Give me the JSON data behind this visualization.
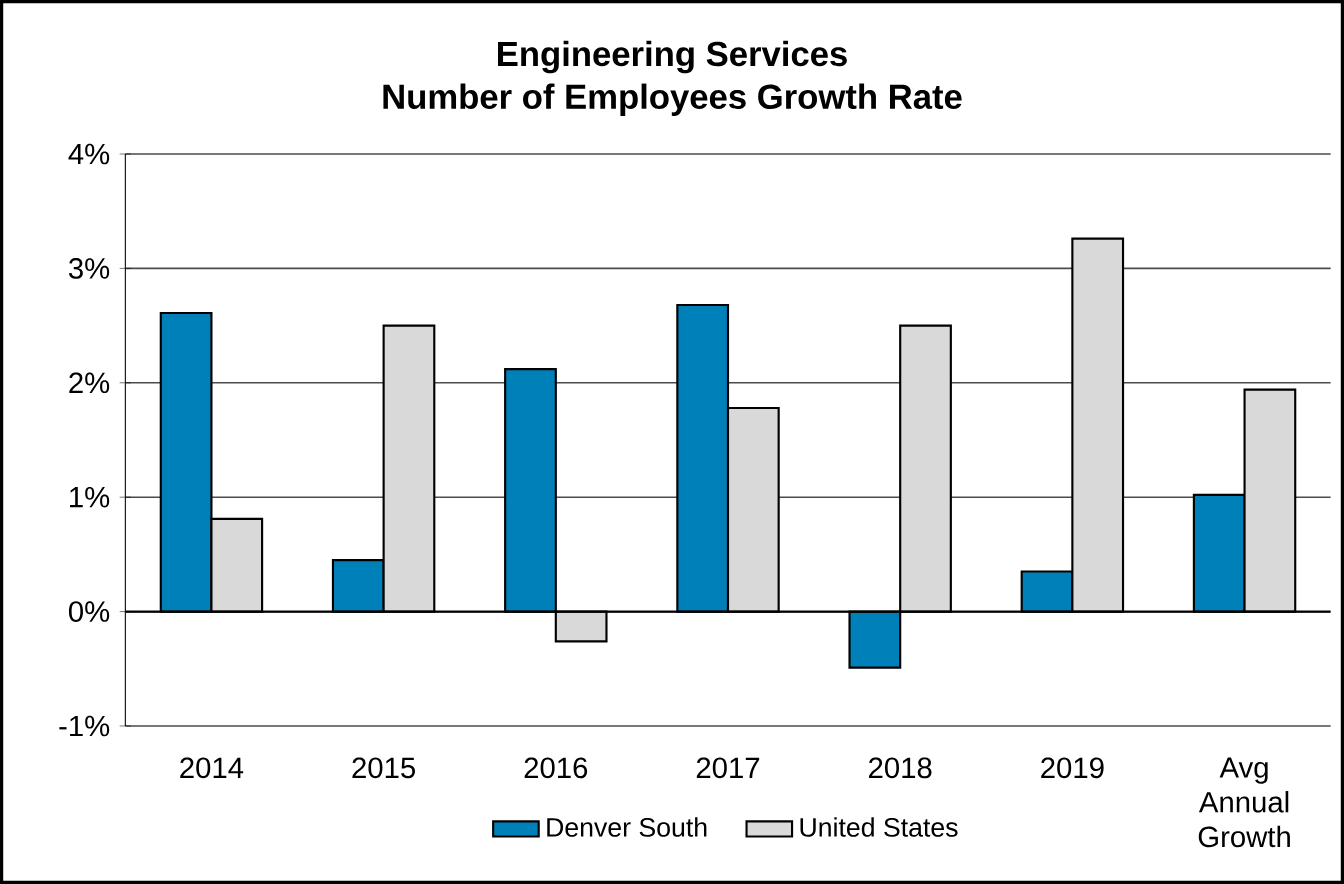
{
  "chart_data": {
    "type": "bar",
    "title": "Engineering Services",
    "subtitle": "Number of Employees Growth Rate",
    "categories": [
      "2014",
      "2015",
      "2016",
      "2017",
      "2018",
      "2019",
      "Avg Annual Growth"
    ],
    "series": [
      {
        "name": "Denver South",
        "color": "#0080b8",
        "values": [
          2.61,
          0.45,
          2.12,
          2.68,
          -0.49,
          0.35,
          1.02
        ]
      },
      {
        "name": "United States",
        "color": "#d9d9d9",
        "values": [
          0.81,
          2.5,
          -0.26,
          1.78,
          2.5,
          3.26,
          1.94
        ]
      }
    ],
    "ylim": [
      -1,
      4
    ],
    "yticks": [
      {
        "value": -1,
        "label": "-1%"
      },
      {
        "value": 0,
        "label": "0%"
      },
      {
        "value": 1,
        "label": "1%"
      },
      {
        "value": 2,
        "label": "2%"
      },
      {
        "value": 3,
        "label": "3%"
      },
      {
        "value": 4,
        "label": "4%"
      }
    ],
    "grid": "y",
    "legend": "bottom"
  }
}
